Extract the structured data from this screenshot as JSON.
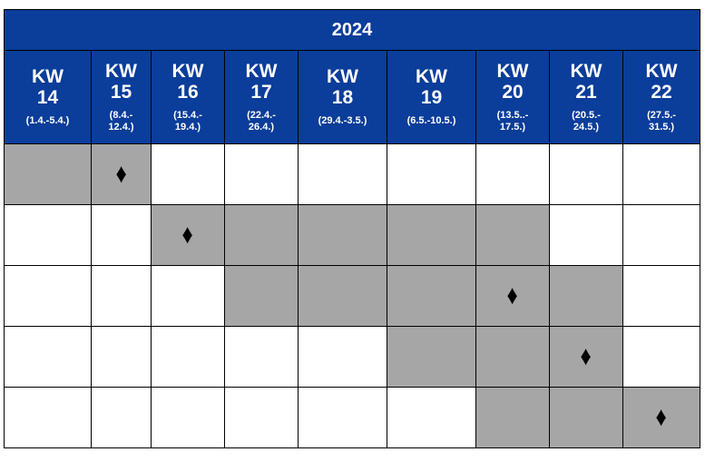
{
  "colors": {
    "header_bg": "#0b3d9a",
    "header_text": "#ffffff",
    "active": "#a6a6a6",
    "inactive": "#ffffff",
    "grid": "#000000"
  },
  "year": "2024",
  "weeks": [
    {
      "kw": "KW",
      "num": "14",
      "range": "(1.4.-5.4.)"
    },
    {
      "kw": "KW",
      "num": "15",
      "range": "(8.4.-\n12.4.)"
    },
    {
      "kw": "KW",
      "num": "16",
      "range": "(15.4.-\n19.4.)"
    },
    {
      "kw": "KW",
      "num": "17",
      "range": "(22.4.-\n26.4.)"
    },
    {
      "kw": "KW",
      "num": "18",
      "range": "(29.4.-3.5.)"
    },
    {
      "kw": "KW",
      "num": "19",
      "range": "(6.5.-10.5.)"
    },
    {
      "kw": "KW",
      "num": "20",
      "range": "(13.5..-\n17.5.)"
    },
    {
      "kw": "KW",
      "num": "21",
      "range": "(20.5.-\n24.5.)"
    },
    {
      "kw": "KW",
      "num": "22",
      "range": "(27.5.-\n31.5.)"
    }
  ],
  "rows": [
    {
      "active": [
        0,
        1
      ],
      "milestone": 1
    },
    {
      "active": [
        2,
        3,
        4,
        5,
        6
      ],
      "milestone": 2
    },
    {
      "active": [
        3,
        4,
        5,
        6,
        7
      ],
      "milestone": 6
    },
    {
      "active": [
        5,
        6,
        7
      ],
      "milestone": 7
    },
    {
      "active": [
        6,
        7,
        8
      ],
      "milestone": 8
    }
  ],
  "milestone_symbol": "♦",
  "milestone_icon": "diamond-icon"
}
